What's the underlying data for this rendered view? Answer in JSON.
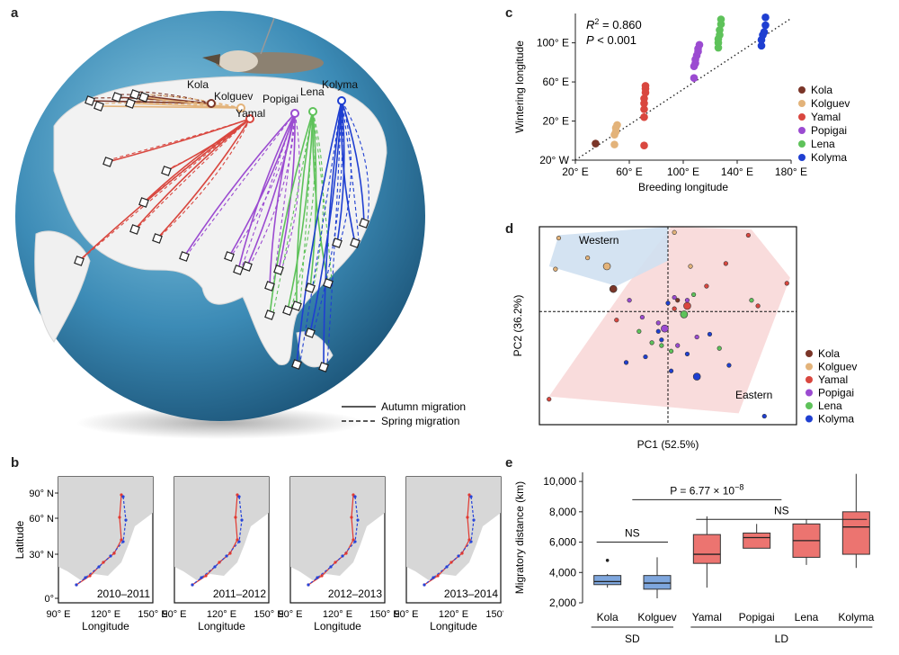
{
  "panels": {
    "a": "a",
    "b": "b",
    "c": "c",
    "d": "d",
    "e": "e"
  },
  "colors": {
    "Kola": "#7a3528",
    "Kolguev": "#e3b37a",
    "Yamal": "#d9473f",
    "Popigai": "#9b4bd1",
    "Lena": "#5ec25a",
    "Kolyma": "#1f3fd1",
    "sd_box": "#7ea6dd",
    "ld_box": "#ec7470"
  },
  "map": {
    "populations": [
      "Kola",
      "Kolguev",
      "Yamal",
      "Popigai",
      "Lena",
      "Kolyma"
    ],
    "legend": {
      "autumn": "Autumn migration",
      "spring": "Spring migration"
    }
  },
  "mini_maps": {
    "ylabel": "Latitude",
    "xlabel": "Longitude",
    "yticks": [
      "90° N",
      "60° N",
      "30° N",
      "0°"
    ],
    "xticks": [
      "90° E",
      "120° E",
      "150° E"
    ],
    "panels": [
      "2010–2011",
      "2011–2012",
      "2012–2013",
      "2013–2014"
    ]
  },
  "chart_data": [
    {
      "panel": "c",
      "type": "scatter",
      "xlabel": "Breeding longitude",
      "ylabel": "Wintering longitude",
      "xlim": [
        20,
        180
      ],
      "ylim": [
        -20,
        130
      ],
      "xticks": [
        {
          "v": 20,
          "t": "20° E"
        },
        {
          "v": 60,
          "t": "60° E"
        },
        {
          "v": 100,
          "t": "100° E"
        },
        {
          "v": 140,
          "t": "140° E"
        },
        {
          "v": 180,
          "t": "180° E"
        }
      ],
      "yticks": [
        {
          "v": -20,
          "t": "20° W"
        },
        {
          "v": 20,
          "t": "20° E"
        },
        {
          "v": 60,
          "t": "60° E"
        },
        {
          "v": 100,
          "t": "100° E"
        }
      ],
      "annotation": {
        "r2": "R",
        "r2_sup": "2",
        "r2_val": " = 0.860",
        "p": "P",
        "p_val": " < 0.001"
      },
      "fit": {
        "x": [
          20,
          180
        ],
        "y": [
          -20,
          125
        ]
      },
      "legend_position": "right",
      "series": [
        {
          "name": "Kola",
          "x": [
            35
          ],
          "y": [
            -3
          ]
        },
        {
          "name": "Kolguev",
          "x": [
            49,
            49,
            50,
            50,
            51
          ],
          "y": [
            -4,
            6,
            9,
            13,
            16
          ]
        },
        {
          "name": "Yamal",
          "x": [
            71,
            71,
            71,
            71,
            71,
            72,
            72,
            72
          ],
          "y": [
            -5,
            24,
            32,
            38,
            43,
            49,
            53,
            56
          ]
        },
        {
          "name": "Popigai",
          "x": [
            108,
            108,
            109,
            109,
            110,
            111,
            111,
            112
          ],
          "y": [
            64,
            76,
            79,
            83,
            87,
            91,
            94,
            98
          ]
        },
        {
          "name": "Lena",
          "x": [
            126,
            126,
            126,
            127,
            127,
            128,
            128
          ],
          "y": [
            95,
            100,
            104,
            108,
            113,
            119,
            124
          ]
        },
        {
          "name": "Kolyma",
          "x": [
            158,
            158,
            159,
            160,
            161,
            161
          ],
          "y": [
            97,
            103,
            108,
            111,
            118,
            126
          ]
        }
      ]
    },
    {
      "panel": "d",
      "type": "scatter",
      "xlabel": "PC1 (52.5%)",
      "ylabel": "PC2 (36.2%)",
      "xlim": [
        -4,
        4
      ],
      "ylim": [
        -4,
        3
      ],
      "group_labels": {
        "western": "Western",
        "eastern": "Eastern"
      },
      "legend_position": "right",
      "series": [
        {
          "name": "Kola",
          "x": [
            -1.7,
            0.3
          ],
          "y": [
            0.8,
            0.4
          ],
          "big": [
            0
          ]
        },
        {
          "name": "Kolguev",
          "x": [
            -3.5,
            -3.4,
            -2.5,
            -1.9,
            0.2,
            0.7
          ],
          "y": [
            1.5,
            2.6,
            1.9,
            1.6,
            2.8,
            1.6
          ],
          "big": [
            3
          ]
        },
        {
          "name": "Yamal",
          "x": [
            -3.7,
            -1.6,
            0.2,
            0.6,
            1.2,
            1.8,
            2.8,
            3.7,
            2.5
          ],
          "y": [
            -3.1,
            -0.3,
            0.1,
            0.2,
            0.9,
            1.7,
            0.2,
            1.0,
            2.7
          ],
          "big": [
            3
          ]
        },
        {
          "name": "Popigai",
          "x": [
            -1.2,
            -0.8,
            -0.3,
            -0.1,
            0.2,
            0.3,
            0.6,
            0.9
          ],
          "y": [
            0.4,
            -0.2,
            -0.4,
            -0.6,
            0.5,
            -1.2,
            0.4,
            -0.9
          ],
          "big": [
            3
          ]
        },
        {
          "name": "Lena",
          "x": [
            -0.9,
            -0.5,
            -0.2,
            0.1,
            0.5,
            0.8,
            2.6,
            1.6
          ],
          "y": [
            -0.7,
            -1.1,
            -1.2,
            -1.4,
            -0.1,
            0.6,
            0.4,
            -1.3
          ],
          "big": [
            4
          ]
        },
        {
          "name": "Kolyma",
          "x": [
            -1.3,
            -0.7,
            -0.3,
            -0.2,
            0.0,
            0.1,
            0.6,
            0.9,
            1.3,
            1.9,
            3.0
          ],
          "y": [
            -1.8,
            -1.6,
            -0.7,
            -1.0,
            0.3,
            -2.1,
            -1.5,
            -2.3,
            -0.8,
            -1.9,
            -3.7
          ],
          "big": [
            7
          ]
        }
      ]
    },
    {
      "panel": "e",
      "type": "box",
      "ylabel": "Migratory distance (km)",
      "ylim": [
        2000,
        10600
      ],
      "yticks": [
        {
          "v": 2000,
          "t": "2,000"
        },
        {
          "v": 4000,
          "t": "4,000"
        },
        {
          "v": 6000,
          "t": "6,000"
        },
        {
          "v": 8000,
          "t": "8,000"
        },
        {
          "v": 10000,
          "t": "10,000"
        }
      ],
      "categories": [
        "Kola",
        "Kolguev",
        "Yamal",
        "Popigai",
        "Lena",
        "Kolyma"
      ],
      "groups": [
        {
          "t": "SD",
          "from": 0,
          "to": 1
        },
        {
          "t": "LD",
          "from": 2,
          "to": 5
        }
      ],
      "kind": [
        "SD",
        "SD",
        "LD",
        "LD",
        "LD",
        "LD"
      ],
      "boxes": [
        {
          "min": 3000,
          "q1": 3200,
          "med": 3400,
          "q3": 3800,
          "max": 3900,
          "out": [
            4800
          ]
        },
        {
          "min": 2300,
          "q1": 2900,
          "med": 3300,
          "q3": 3800,
          "max": 5000,
          "out": []
        },
        {
          "min": 3000,
          "q1": 4600,
          "med": 5200,
          "q3": 6500,
          "max": 7700,
          "out": []
        },
        {
          "min": 5600,
          "q1": 5600,
          "med": 6300,
          "q3": 6600,
          "max": 7200,
          "out": []
        },
        {
          "min": 4500,
          "q1": 5000,
          "med": 6100,
          "q3": 7200,
          "max": 7500,
          "out": []
        },
        {
          "min": 4300,
          "q1": 5200,
          "med": 7000,
          "q3": 8000,
          "max": 10500,
          "out": []
        }
      ],
      "brackets": [
        {
          "from": 0,
          "to": 1,
          "t": "NS",
          "y": 6000
        },
        {
          "from": 2,
          "to": 5,
          "t": "NS",
          "y": 7500
        }
      ],
      "p_bracket": {
        "from": 0.5,
        "to": 3.5,
        "y": 8800,
        "t_pre": "P = 6.77 × 10",
        "t_sup": "−8"
      }
    }
  ]
}
